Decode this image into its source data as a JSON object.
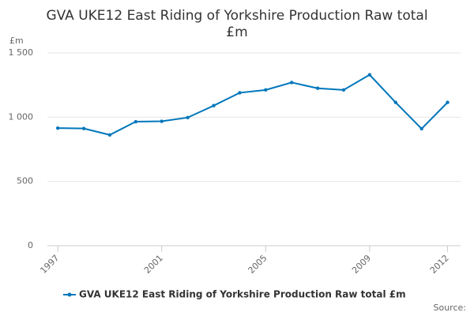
{
  "chart_data": {
    "type": "line",
    "title_lines": [
      "GVA UKE12 East Riding of Yorkshire Production Raw total",
      "£m"
    ],
    "y_label": "£m",
    "source": "Source:",
    "x": [
      1997,
      1998,
      1999,
      2000,
      2001,
      2002,
      2003,
      2004,
      2005,
      2006,
      2007,
      2008,
      2009,
      2010,
      2011,
      2012
    ],
    "series": [
      {
        "name": "GVA UKE12 East Riding of Yorkshire Production Raw total £m",
        "color": "#0077bb",
        "values": [
          915,
          912,
          862,
          965,
          968,
          997,
          1090,
          1190,
          1212,
          1270,
          1225,
          1212,
          1330,
          1115,
          910,
          1115
        ]
      }
    ],
    "xlim": [
      1996.6,
      2012.5
    ],
    "xticks": [
      1997,
      2001,
      2005,
      2009,
      2012
    ],
    "ylim": [
      0,
      1500
    ],
    "yticks": [
      0,
      500,
      {
        "value": 1000,
        "label": "1 000"
      },
      {
        "value": 1500,
        "label": "1 500"
      }
    ],
    "grid": true
  }
}
